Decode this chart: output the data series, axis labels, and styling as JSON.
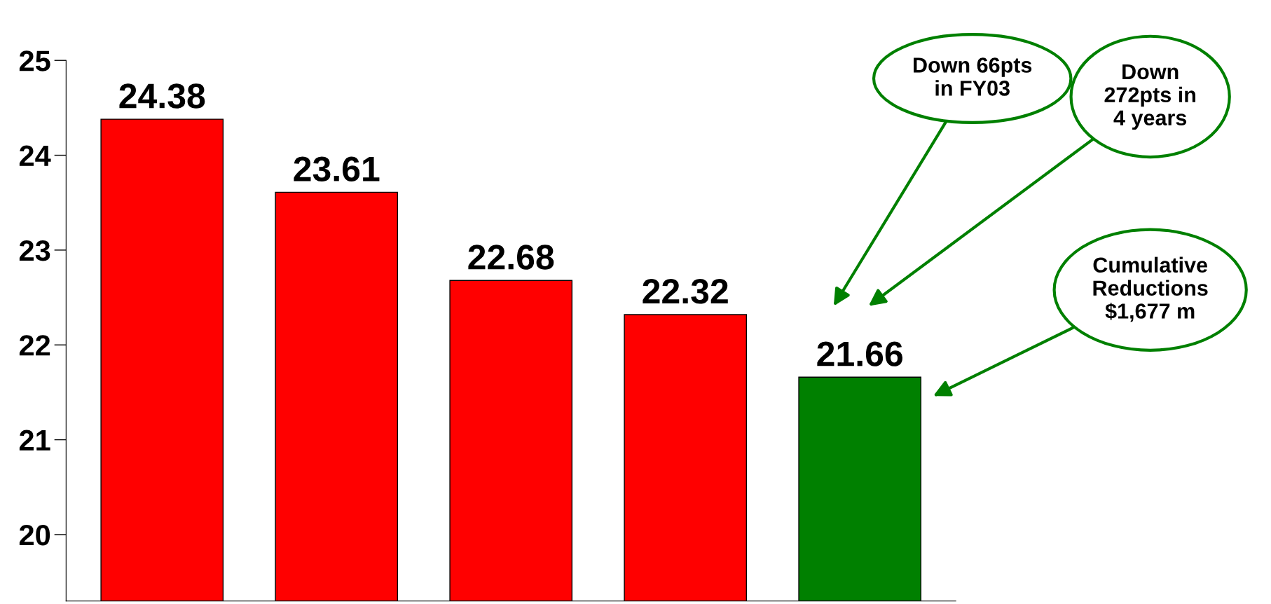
{
  "chart_data": {
    "type": "bar",
    "categories": [
      null,
      null,
      null,
      null,
      null
    ],
    "values": [
      24.38,
      23.61,
      22.68,
      22.32,
      21.66
    ],
    "colors": [
      "#ff0000",
      "#ff0000",
      "#ff0000",
      "#ff0000",
      "#008000"
    ],
    "ylim": [
      19.3,
      25
    ],
    "yticks": [
      20,
      21,
      22,
      23,
      24,
      25
    ],
    "data_labels": true,
    "grid": false,
    "legend": false,
    "annotations": [
      "Down 66pts\nin FY03",
      "Down\n272pts in\n4 years",
      "Cumulative\nReductions\n$1,677 m"
    ]
  }
}
